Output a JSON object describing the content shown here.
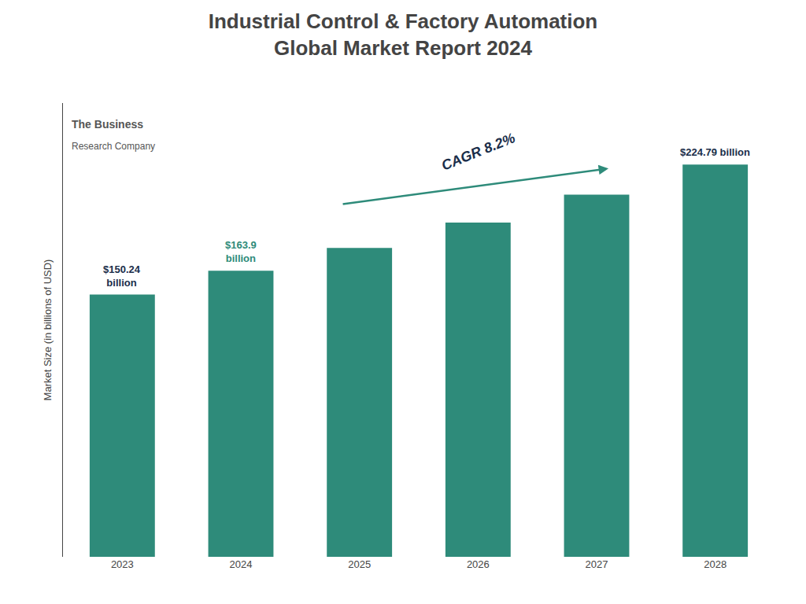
{
  "chart_data": {
    "type": "bar",
    "title": "Industrial Control & Factory Automation\nGlobal Market Report 2024",
    "y_label": "Market Size (in billions of USD)",
    "categories": [
      "2023",
      "2024",
      "2025",
      "2026",
      "2027",
      "2028"
    ],
    "values": [
      150.24,
      163.9,
      177.0,
      191.5,
      207.5,
      224.79
    ],
    "color": "#2e8b7a",
    "ylim": [
      0,
      260
    ],
    "grid": false,
    "tick_labels": "x",
    "annotations": [
      {
        "category": "2023",
        "text": "$150.24\nbillion",
        "color": "#1a2e4a"
      },
      {
        "category": "2024",
        "text": "$163.9\nbillion",
        "color": "#2e8b7a"
      },
      {
        "category": "2028",
        "text": "$224.79 billion",
        "color": "#1a2e4a"
      },
      {
        "text": "CAGR 8.2%",
        "color": "#1a2e4a",
        "arrow_color": "#2e8b7a",
        "from": "2025",
        "to": "2027"
      },
      {
        "text": "The Business",
        "color": "#555555"
      },
      {
        "text": "Research Company",
        "color": "#555555"
      }
    ]
  }
}
